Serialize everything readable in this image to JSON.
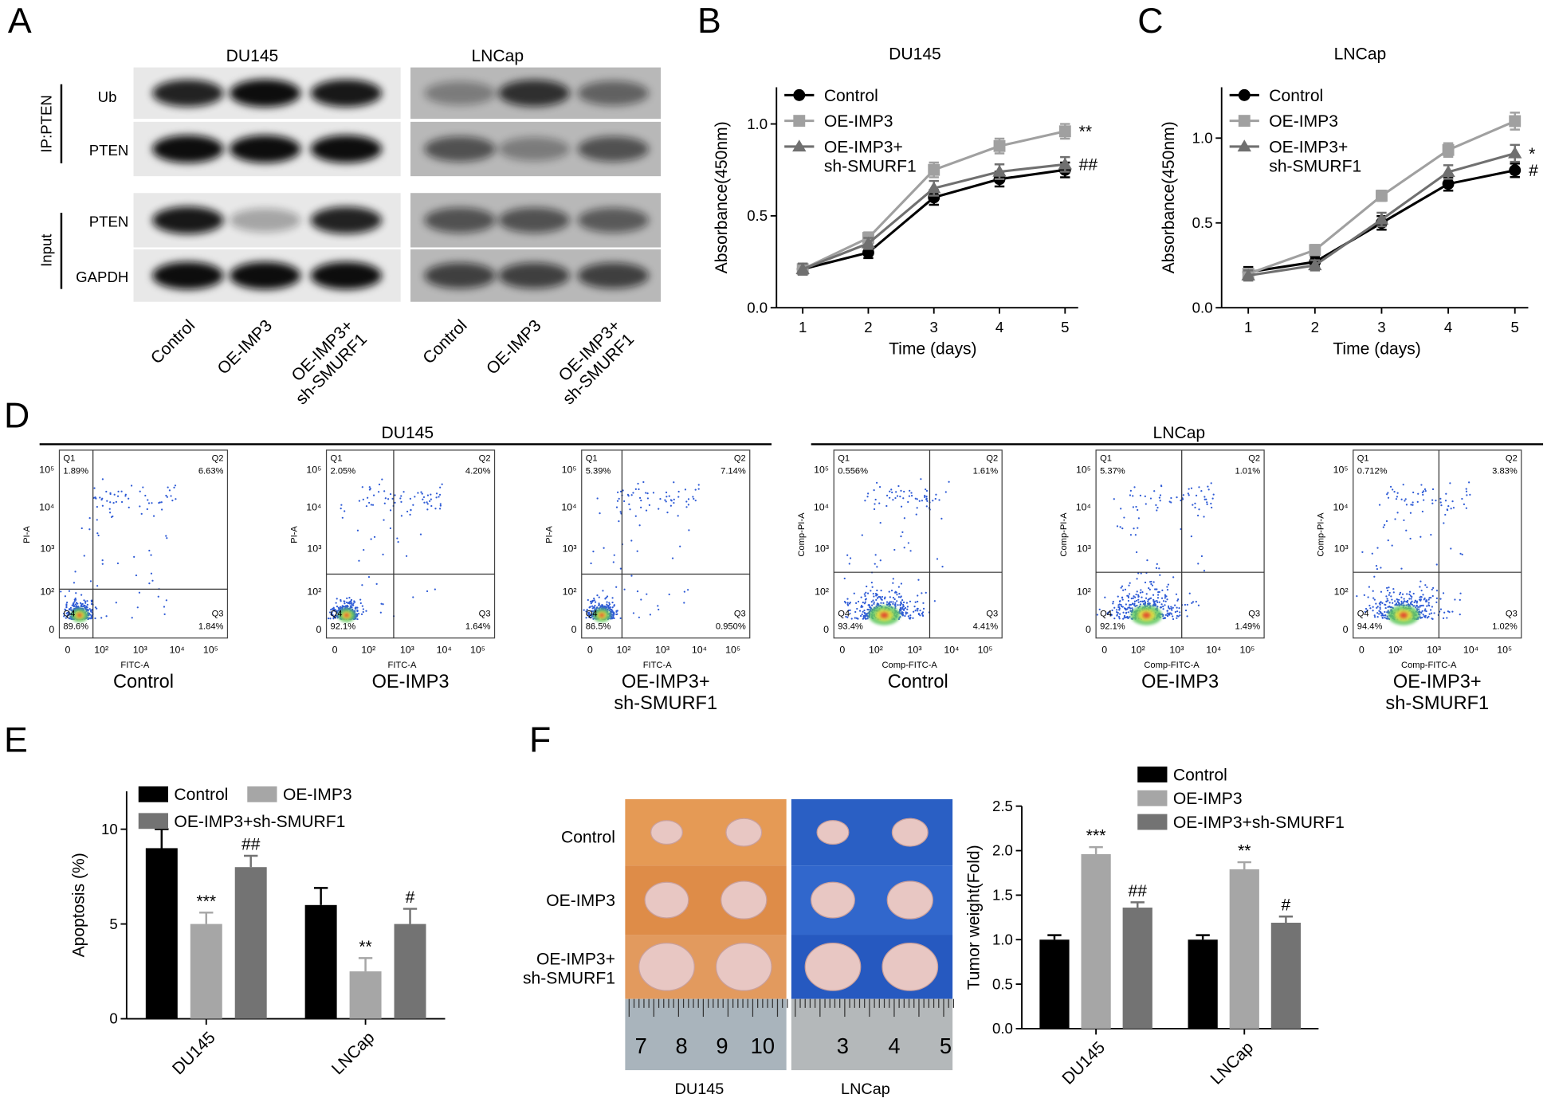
{
  "panel_labels": [
    "A",
    "B",
    "C",
    "D",
    "E",
    "F"
  ],
  "western_blot": {
    "cell_lines": [
      "DU145",
      "LNCap"
    ],
    "groups": [
      "IP:PTEN",
      "Input"
    ],
    "rows": [
      "Ub",
      "PTEN",
      "PTEN",
      "GAPDH"
    ],
    "lanes": [
      "Control",
      "OE-IMP3",
      "OE-IMP3+\nsh-SMURF1"
    ]
  },
  "chart_data": [
    {
      "type": "line",
      "title": "DU145",
      "x_label": "Time (days)",
      "y_label": "Absorbance(450nm)",
      "x": [
        1,
        2,
        3,
        4,
        5
      ],
      "xlim": [
        0.6,
        5.2
      ],
      "xticks": [
        1,
        2,
        3,
        4,
        5
      ],
      "ylim": [
        0,
        1.2
      ],
      "yticks": [
        {
          "value": 0,
          "label": "0.0"
        },
        {
          "value": 0.5,
          "label": "0.5"
        },
        {
          "value": 1,
          "label": "1.0"
        }
      ],
      "legend": "upper left",
      "series": [
        {
          "name": "Control",
          "color": "#000000",
          "marker": "circle",
          "values": [
            0.21,
            0.3,
            0.6,
            0.7,
            0.75
          ],
          "errors": [
            0.03,
            0.03,
            0.04,
            0.04,
            0.04
          ]
        },
        {
          "name": "OE-IMP3",
          "color": "#a0a0a0",
          "marker": "square",
          "values": [
            0.21,
            0.38,
            0.75,
            0.88,
            0.96
          ],
          "errors": [
            0.03,
            0.03,
            0.04,
            0.04,
            0.04
          ],
          "annotation": "**"
        },
        {
          "name": "OE-IMP3+\nsh-SMURF1",
          "color": "#707070",
          "marker": "triangle",
          "values": [
            0.21,
            0.35,
            0.65,
            0.74,
            0.78
          ],
          "errors": [
            0.03,
            0.03,
            0.04,
            0.04,
            0.04
          ],
          "annotation": "##"
        }
      ]
    },
    {
      "type": "line",
      "title": "LNCap",
      "x_label": "Time (days)",
      "y_label": "Absorbance(450nm)",
      "x": [
        1,
        2,
        3,
        4,
        5
      ],
      "xlim": [
        0.6,
        5.2
      ],
      "xticks": [
        1,
        2,
        3,
        4,
        5
      ],
      "ylim": [
        0,
        1.3
      ],
      "yticks": [
        {
          "value": 0,
          "label": "0.0"
        },
        {
          "value": 0.5,
          "label": "0.5"
        },
        {
          "value": 1,
          "label": "1.0"
        }
      ],
      "legend": "upper left",
      "series": [
        {
          "name": "Control",
          "color": "#000000",
          "marker": "circle",
          "values": [
            0.21,
            0.27,
            0.5,
            0.73,
            0.81
          ],
          "errors": [
            0.03,
            0.03,
            0.04,
            0.04,
            0.04
          ],
          "annotation": "#"
        },
        {
          "name": "OE-IMP3",
          "color": "#a0a0a0",
          "marker": "square",
          "values": [
            0.2,
            0.34,
            0.66,
            0.93,
            1.1
          ],
          "errors": [
            0.03,
            0.03,
            0.03,
            0.04,
            0.05
          ]
        },
        {
          "name": "OE-IMP3+\nsh-SMURF1",
          "color": "#707070",
          "marker": "triangle",
          "values": [
            0.19,
            0.25,
            0.52,
            0.8,
            0.91
          ],
          "errors": [
            0.03,
            0.03,
            0.04,
            0.04,
            0.05
          ],
          "annotation": "*"
        }
      ]
    },
    {
      "type": "bar",
      "y_label": "Apoptosis (%)",
      "categories": [
        "DU145",
        "LNCap"
      ],
      "ylim": [
        0,
        12
      ],
      "yticks": [
        0,
        5,
        10
      ],
      "series": [
        {
          "name": "Control",
          "color": "#000000",
          "values": [
            9,
            6
          ],
          "errors": [
            1,
            0.9
          ],
          "annotations": [
            null,
            null
          ]
        },
        {
          "name": "OE-IMP3",
          "color": "#a6a6a6",
          "values": [
            5,
            2.5
          ],
          "errors": [
            0.6,
            0.7
          ],
          "annotations": [
            "***",
            "**"
          ]
        },
        {
          "name": "OE-IMP3+sh-SMURF1",
          "color": "#737373",
          "values": [
            8,
            5
          ],
          "errors": [
            0.6,
            0.8
          ],
          "annotations": [
            "##",
            "#"
          ]
        }
      ]
    },
    {
      "type": "bar",
      "y_label": "Tumor weight(Fold)",
      "categories": [
        "DU145",
        "LNCap"
      ],
      "ylim": [
        0,
        2.5
      ],
      "yticks": [
        {
          "value": 0,
          "label": "0.0"
        },
        {
          "value": 0.5,
          "label": "0.5"
        },
        {
          "value": 1,
          "label": "1.0"
        },
        {
          "value": 1.5,
          "label": "1.5"
        },
        {
          "value": 2,
          "label": "2.0"
        },
        {
          "value": 2.5,
          "label": "2.5"
        }
      ],
      "series": [
        {
          "name": "Control",
          "color": "#000000",
          "values": [
            1,
            1
          ],
          "errors": [
            0.05,
            0.05
          ],
          "annotations": [
            null,
            null
          ]
        },
        {
          "name": "OE-IMP3",
          "color": "#a6a6a6",
          "values": [
            1.96,
            1.79
          ],
          "errors": [
            0.08,
            0.08
          ],
          "annotations": [
            "***",
            "**"
          ]
        },
        {
          "name": "OE-IMP3+sh-SMURF1",
          "color": "#737373",
          "values": [
            1.36,
            1.19
          ],
          "errors": [
            0.06,
            0.07
          ],
          "annotations": [
            "##",
            "#"
          ]
        }
      ]
    }
  ],
  "flow_cytometry": {
    "ticks": [
      "0",
      "10²",
      "10³",
      "10⁴",
      "10⁵"
    ],
    "groups": [
      {
        "name": "DU145",
        "x_axis_label": "FITC-A",
        "y_axis_label": "PI-A",
        "plots": [
          {
            "label": "Control",
            "quadrants": [
              {
                "name": "Q1",
                "value": "1.89%"
              },
              {
                "name": "Q2",
                "value": "6.63%"
              },
              {
                "name": "Q3",
                "value": "1.84%"
              },
              {
                "name": "Q4",
                "value": "89.6%"
              }
            ]
          },
          {
            "label": "OE-IMP3",
            "quadrants": [
              {
                "name": "Q1",
                "value": "2.05%"
              },
              {
                "name": "Q2",
                "value": "4.20%"
              },
              {
                "name": "Q3",
                "value": "1.64%"
              },
              {
                "name": "Q4",
                "value": "92.1%"
              }
            ]
          },
          {
            "label": "OE-IMP3+\nsh-SMURF1",
            "quadrants": [
              {
                "name": "Q1",
                "value": "5.39%"
              },
              {
                "name": "Q2",
                "value": "7.14%"
              },
              {
                "name": "Q3",
                "value": "0.950%"
              },
              {
                "name": "Q4",
                "value": "86.5%"
              }
            ]
          }
        ]
      },
      {
        "name": "LNCap",
        "x_axis_label": "Comp-FITC-A",
        "y_axis_label": "Comp-PI-A",
        "plots": [
          {
            "label": "Control",
            "quadrants": [
              {
                "name": "Q1",
                "value": "0.556%"
              },
              {
                "name": "Q2",
                "value": "1.61%"
              },
              {
                "name": "Q3",
                "value": "4.41%"
              },
              {
                "name": "Q4",
                "value": "93.4%"
              }
            ]
          },
          {
            "label": "OE-IMP3",
            "quadrants": [
              {
                "name": "Q1",
                "value": "5.37%"
              },
              {
                "name": "Q2",
                "value": "1.01%"
              },
              {
                "name": "Q3",
                "value": "1.49%"
              },
              {
                "name": "Q4",
                "value": "92.1%"
              }
            ]
          },
          {
            "label": "OE-IMP3+\nsh-SMURF1",
            "quadrants": [
              {
                "name": "Q1",
                "value": "0.712%"
              },
              {
                "name": "Q2",
                "value": "3.83%"
              },
              {
                "name": "Q3",
                "value": "1.02%"
              },
              {
                "name": "Q4",
                "value": "94.4%"
              }
            ]
          }
        ]
      }
    ]
  },
  "tumor_images": {
    "rows": [
      "Control",
      "OE-IMP3",
      "OE-IMP3+\nsh-SMURF1"
    ],
    "cell_lines": [
      "DU145",
      "LNCap"
    ],
    "ruler_labels": [
      [
        "7",
        "8",
        "9",
        "10"
      ],
      [
        "3",
        "4",
        "5"
      ]
    ]
  }
}
